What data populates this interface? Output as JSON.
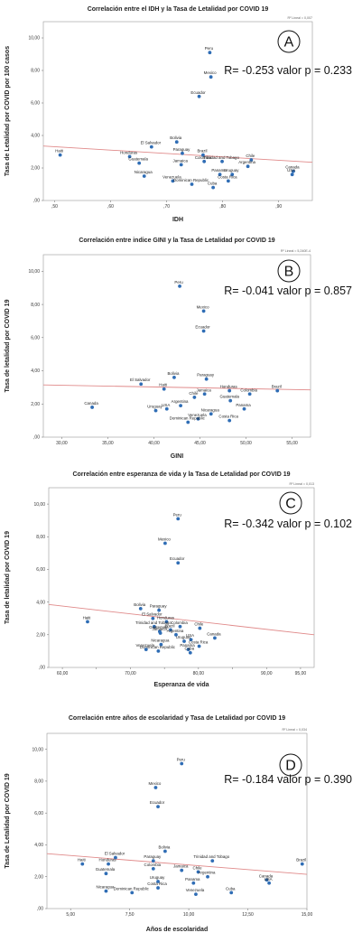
{
  "chart_data": [
    {
      "type": "scatter",
      "title": "Correlación entre el IDH y la Tasa de Letalidad  por COVID 19",
      "r2_label": "R² Lineal = 0,007",
      "xlabel": "IDH",
      "ylabel": "Tasa de Letalidad por COVID por 100 casos",
      "xlim": [
        0.48,
        0.96
      ],
      "ylim": [
        0,
        11
      ],
      "xticks": [
        0.5,
        0.6,
        0.7,
        0.8,
        0.9
      ],
      "xtick_labels": [
        ",50",
        ",60",
        ",70",
        ",80",
        ",90"
      ],
      "yticks": [
        0,
        2,
        4,
        6,
        8,
        10
      ],
      "ytick_labels": [
        ",00",
        "2,00",
        "4,00",
        "6,00",
        "8,00",
        "10,00"
      ],
      "letter": "A",
      "stat_text": "R= -0.253 valor p = 0.233",
      "trend": [
        [
          0.48,
          3.35
        ],
        [
          0.96,
          2.35
        ]
      ],
      "points": [
        {
          "label": "Peru",
          "x": 0.777,
          "y": 9.1
        },
        {
          "label": "Mexico",
          "x": 0.779,
          "y": 7.6
        },
        {
          "label": "Ecuador",
          "x": 0.758,
          "y": 6.4
        },
        {
          "label": "Bolivia",
          "x": 0.718,
          "y": 3.6
        },
        {
          "label": "El Salvador",
          "x": 0.673,
          "y": 3.3
        },
        {
          "label": "Paraguay",
          "x": 0.728,
          "y": 2.9
        },
        {
          "label": "Honduras",
          "x": 0.634,
          "y": 2.7
        },
        {
          "label": "Brazil",
          "x": 0.765,
          "y": 2.8
        },
        {
          "label": "Trinidad and Tobago",
          "x": 0.799,
          "y": 2.4
        },
        {
          "label": "Haiti",
          "x": 0.51,
          "y": 2.8
        },
        {
          "label": "Guatemala",
          "x": 0.651,
          "y": 2.3
        },
        {
          "label": "Jamaica",
          "x": 0.726,
          "y": 2.2
        },
        {
          "label": "Colombia",
          "x": 0.767,
          "y": 2.4
        },
        {
          "label": "Chile",
          "x": 0.851,
          "y": 2.5
        },
        {
          "label": "Argentina",
          "x": 0.845,
          "y": 2.1
        },
        {
          "label": "Uruguay",
          "x": 0.817,
          "y": 1.6
        },
        {
          "label": "Canada",
          "x": 0.926,
          "y": 1.8
        },
        {
          "label": "USA",
          "x": 0.924,
          "y": 1.6
        },
        {
          "label": "Nicaragua",
          "x": 0.66,
          "y": 1.5
        },
        {
          "label": "Venezuela",
          "x": 0.711,
          "y": 1.2
        },
        {
          "label": "Panama",
          "x": 0.795,
          "y": 1.6
        },
        {
          "label": "Dominican Republic",
          "x": 0.745,
          "y": 1.0
        },
        {
          "label": "Costa Rica",
          "x": 0.81,
          "y": 1.2
        },
        {
          "label": "Cuba",
          "x": 0.783,
          "y": 0.8
        }
      ]
    },
    {
      "type": "scatter",
      "title": "Correlación entre indice GINI y la Tasa de Letalidad por COVID 19",
      "r2_label": "R² Lineal = 5,240E-4",
      "xlabel": "GINI",
      "ylabel": "Tasa de letalidad por COVID 19",
      "xlim": [
        28,
        57
      ],
      "ylim": [
        0,
        11
      ],
      "xticks": [
        30,
        35,
        40,
        45,
        50,
        55
      ],
      "xtick_labels": [
        "30,00",
        "35,00",
        "40,00",
        "45,00",
        "50,00",
        "55,00"
      ],
      "yticks": [
        0,
        2,
        4,
        6,
        8,
        10
      ],
      "ytick_labels": [
        ",00",
        "2,00",
        "4,00",
        "6,00",
        "8,00",
        "10,00"
      ],
      "letter": "B",
      "stat_text": "R= -0.041  valor p = 0.857",
      "trend": [
        [
          28,
          3.15
        ],
        [
          57,
          2.85
        ]
      ],
      "points": [
        {
          "label": "Peru",
          "x": 42.8,
          "y": 9.1
        },
        {
          "label": "Mexico",
          "x": 45.4,
          "y": 7.6
        },
        {
          "label": "Ecuador",
          "x": 45.4,
          "y": 6.4
        },
        {
          "label": "Bolivia",
          "x": 42.2,
          "y": 3.6
        },
        {
          "label": "Paraguay",
          "x": 45.7,
          "y": 3.5
        },
        {
          "label": "El Salvador",
          "x": 38.6,
          "y": 3.2
        },
        {
          "label": "Haiti",
          "x": 41.1,
          "y": 2.9
        },
        {
          "label": "Honduras",
          "x": 48.2,
          "y": 2.8
        },
        {
          "label": "Colombia",
          "x": 50.4,
          "y": 2.6
        },
        {
          "label": "Brazil",
          "x": 53.4,
          "y": 2.8
        },
        {
          "label": "Jamaica",
          "x": 45.5,
          "y": 2.6
        },
        {
          "label": "Chile",
          "x": 44.4,
          "y": 2.4
        },
        {
          "label": "Guatemala",
          "x": 48.3,
          "y": 2.2
        },
        {
          "label": "Canada",
          "x": 33.3,
          "y": 1.8
        },
        {
          "label": "Uruguay",
          "x": 40.2,
          "y": 1.6
        },
        {
          "label": "USA",
          "x": 41.4,
          "y": 1.7
        },
        {
          "label": "Argentina",
          "x": 42.9,
          "y": 1.9
        },
        {
          "label": "Panama",
          "x": 49.8,
          "y": 1.7
        },
        {
          "label": "Nicaragua",
          "x": 46.2,
          "y": 1.4
        },
        {
          "label": "Venezuela",
          "x": 44.8,
          "y": 1.1
        },
        {
          "label": "Costa Rica",
          "x": 48.2,
          "y": 1.0
        },
        {
          "label": "Dominican Republic",
          "x": 43.7,
          "y": 0.9
        }
      ]
    },
    {
      "type": "scatter",
      "title": "Correlación entre esperanza de vida y la Tasa de Letalidad por COVID 19",
      "r2_label": "R² Lineal = 0,013",
      "xlabel": "Esperanza de vida",
      "ylabel": "Tasa de letalidad por COVID 19",
      "xlim": [
        58,
        97
      ],
      "ylim": [
        0,
        11
      ],
      "xticks": [
        60,
        65,
        70,
        75,
        80,
        85,
        90,
        95
      ],
      "xtick_labels": [
        "60,00",
        "",
        "70,00",
        "",
        "80,00",
        "",
        "90,00",
        "95,00"
      ],
      "yticks": [
        0,
        2,
        4,
        6,
        8,
        10
      ],
      "ytick_labels": [
        ",00",
        "2,00",
        "4,00",
        "6,00",
        "8,00",
        "10,00"
      ],
      "letter": "C",
      "stat_text": "R= -0.342 valor p = 0.102",
      "trend": [
        [
          58,
          3.85
        ],
        [
          97,
          2.0
        ]
      ],
      "points": [
        {
          "label": "Peru",
          "x": 77.0,
          "y": 9.1
        },
        {
          "label": "Mexico",
          "x": 75.1,
          "y": 7.6
        },
        {
          "label": "Ecuador",
          "x": 77.0,
          "y": 6.4
        },
        {
          "label": "Bolivia",
          "x": 71.5,
          "y": 3.6
        },
        {
          "label": "Paraguay",
          "x": 74.2,
          "y": 3.5
        },
        {
          "label": "El Salvador",
          "x": 73.3,
          "y": 3.0
        },
        {
          "label": "Honduras",
          "x": 75.3,
          "y": 2.8
        },
        {
          "label": "Trinidad and Tobago",
          "x": 73.5,
          "y": 2.5
        },
        {
          "label": "Colombia",
          "x": 77.3,
          "y": 2.5
        },
        {
          "label": "Brazil",
          "x": 75.9,
          "y": 2.3
        },
        {
          "label": "Chile",
          "x": 80.2,
          "y": 2.4
        },
        {
          "label": "Haiti",
          "x": 63.7,
          "y": 2.8
        },
        {
          "label": "Guatemala",
          "x": 74.3,
          "y": 2.2
        },
        {
          "label": "Jamaica",
          "x": 74.4,
          "y": 2.1
        },
        {
          "label": "Argentina",
          "x": 76.7,
          "y": 2.0
        },
        {
          "label": "Canada",
          "x": 82.4,
          "y": 1.8
        },
        {
          "label": "USA",
          "x": 78.9,
          "y": 1.7
        },
        {
          "label": "Uruguay",
          "x": 77.9,
          "y": 1.6
        },
        {
          "label": "Costa Rica",
          "x": 80.1,
          "y": 1.3
        },
        {
          "label": "Panama",
          "x": 78.5,
          "y": 1.1
        },
        {
          "label": "Cuba",
          "x": 78.8,
          "y": 0.9
        },
        {
          "label": "Nicaragua",
          "x": 74.5,
          "y": 1.4
        },
        {
          "label": "Dominican Republic",
          "x": 74.1,
          "y": 1.0
        },
        {
          "label": "Venezuela",
          "x": 72.3,
          "y": 1.1
        }
      ]
    },
    {
      "type": "scatter",
      "title": "Correlación entre años de escolaridad y Tasa de Letalidad por COVID 19",
      "r2_label": "R² Lineal = 0,034",
      "xlabel": "Años de escolaridad",
      "ylabel": "Tasa de Letalidad por COVID 19",
      "xlim": [
        4,
        15
      ],
      "ylim": [
        0,
        11
      ],
      "xticks": [
        5,
        7.5,
        10,
        12.5,
        15
      ],
      "xtick_labels": [
        "5,00",
        "7,50",
        "10,00",
        "12,50",
        "15,00"
      ],
      "yticks": [
        0,
        2,
        4,
        6,
        8,
        10
      ],
      "ytick_labels": [
        ",00",
        "2,00",
        "4,00",
        "6,00",
        "8,00",
        "10,00"
      ],
      "letter": "D",
      "stat_text": "R= -0.184 valor p = 0.390",
      "trend": [
        [
          4,
          3.45
        ],
        [
          15,
          2.15
        ]
      ],
      "points": [
        {
          "label": "Peru",
          "x": 9.7,
          "y": 9.1
        },
        {
          "label": "Mexico",
          "x": 8.6,
          "y": 7.6
        },
        {
          "label": "Ecuador",
          "x": 8.7,
          "y": 6.4
        },
        {
          "label": "Bolivia",
          "x": 9.0,
          "y": 3.6
        },
        {
          "label": "El Salvador",
          "x": 6.9,
          "y": 3.2
        },
        {
          "label": "Paraguay",
          "x": 8.5,
          "y": 3.0
        },
        {
          "label": "Trinidad and Tobago",
          "x": 11.0,
          "y": 3.0
        },
        {
          "label": "Haiti",
          "x": 5.5,
          "y": 2.8
        },
        {
          "label": "Honduras",
          "x": 6.6,
          "y": 2.8
        },
        {
          "label": "Colombia",
          "x": 8.5,
          "y": 2.5
        },
        {
          "label": "Jamaica",
          "x": 9.7,
          "y": 2.4
        },
        {
          "label": "Brazil",
          "x": 14.8,
          "y": 2.8
        },
        {
          "label": "Chile",
          "x": 10.4,
          "y": 2.3
        },
        {
          "label": "Argentina",
          "x": 10.8,
          "y": 2.0
        },
        {
          "label": "Guatemala",
          "x": 6.5,
          "y": 2.2
        },
        {
          "label": "Uruguay",
          "x": 8.7,
          "y": 1.7
        },
        {
          "label": "Panama",
          "x": 10.2,
          "y": 1.6
        },
        {
          "label": "Canada",
          "x": 13.3,
          "y": 1.8
        },
        {
          "label": "USA",
          "x": 13.4,
          "y": 1.6
        },
        {
          "label": "Costa Rica",
          "x": 8.7,
          "y": 1.3
        },
        {
          "label": "Nicaragua",
          "x": 6.5,
          "y": 1.1
        },
        {
          "label": "Dominican Republic",
          "x": 7.6,
          "y": 1.0
        },
        {
          "label": "Venezuela",
          "x": 10.3,
          "y": 0.9
        },
        {
          "label": "Cuba",
          "x": 11.8,
          "y": 1.0
        }
      ]
    }
  ]
}
